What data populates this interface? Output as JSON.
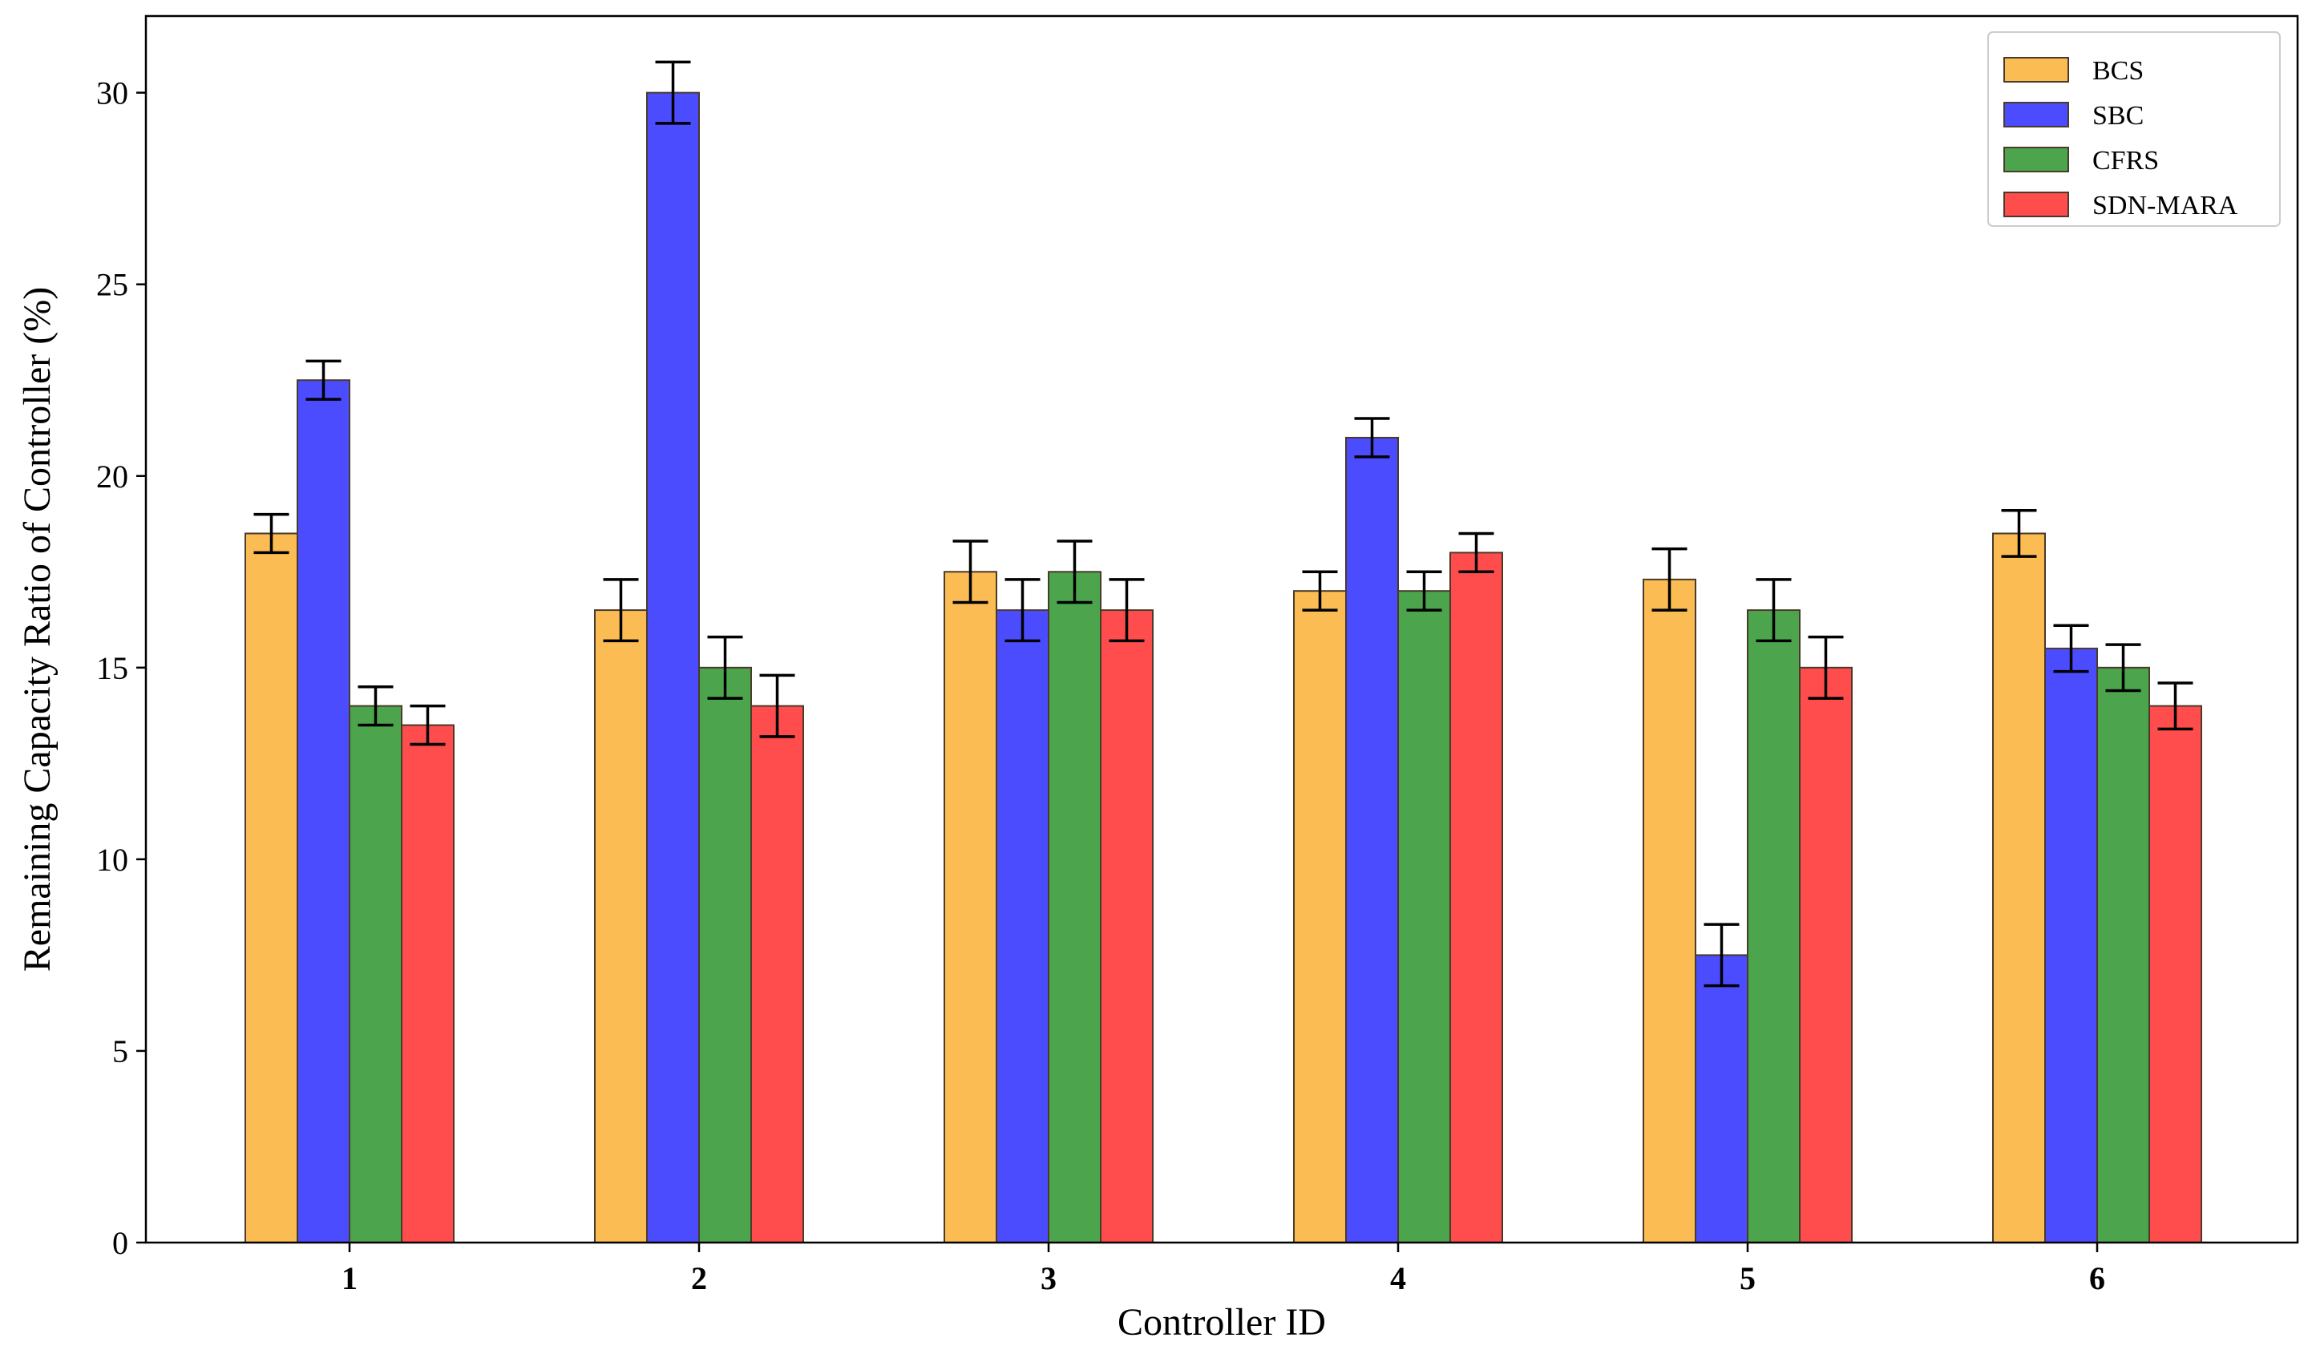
{
  "chart_data": {
    "type": "bar",
    "title": "",
    "xlabel": "Controller ID",
    "ylabel": "Remaining Capacity Ratio of Controller (%)",
    "categories": [
      "1",
      "2",
      "3",
      "4",
      "5",
      "6"
    ],
    "ylim": [
      0,
      32
    ],
    "yticks": [
      0,
      5,
      10,
      15,
      20,
      25,
      30
    ],
    "grid": false,
    "legend_position": "top-right",
    "series": [
      {
        "name": "BCS",
        "color": "#FBB33B",
        "values": [
          18.5,
          16.5,
          17.5,
          17.0,
          17.3,
          18.5
        ],
        "errors": [
          0.5,
          0.8,
          0.8,
          0.5,
          0.8,
          0.6
        ]
      },
      {
        "name": "SBC",
        "color": "#3333FF",
        "values": [
          22.5,
          30.0,
          16.5,
          21.0,
          7.5,
          15.5
        ],
        "errors": [
          0.5,
          0.8,
          0.8,
          0.5,
          0.8,
          0.6
        ]
      },
      {
        "name": "CFRS",
        "color": "#339933",
        "values": [
          14.0,
          15.0,
          17.5,
          17.0,
          16.5,
          15.0
        ],
        "errors": [
          0.5,
          0.8,
          0.8,
          0.5,
          0.8,
          0.6
        ]
      },
      {
        "name": "SDN-MARA",
        "color": "#FF3333",
        "values": [
          13.5,
          14.0,
          16.5,
          18.0,
          15.0,
          14.0
        ],
        "errors": [
          0.5,
          0.8,
          0.8,
          0.5,
          0.8,
          0.6
        ]
      }
    ]
  }
}
